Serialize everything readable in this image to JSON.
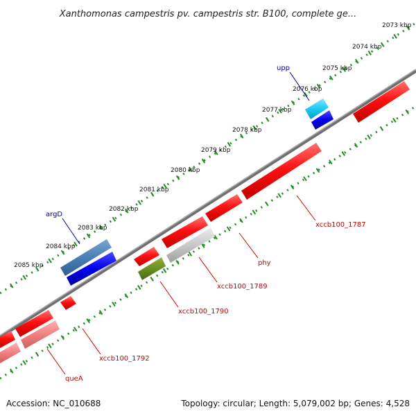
{
  "title": "Xanthomonas campestris pv. campestris str. B100, complete ge...",
  "footer": {
    "accession": "Accession: NC_010688",
    "summary": "Topology: circular; Length: 5,079,002 bp; Genes: 4,528"
  },
  "ticks": [
    "2073 kbp",
    "2074 kbp",
    "2075 kbp",
    "2076 kbp",
    "2077 kbp",
    "2078 kbp",
    "2079 kbp",
    "2080 kbp",
    "2081 kbp",
    "2082 kbp",
    "2083 kbp",
    "2084 kbp",
    "2085 kbp"
  ],
  "genes": [
    {
      "label": "upp",
      "color": "#00008b"
    },
    {
      "label": "argD",
      "color": "#00008b"
    },
    {
      "label": "xccb100_1787",
      "color": "#cc0000"
    },
    {
      "label": "phy",
      "color": "#cc0000"
    },
    {
      "label": "xccb100_1789",
      "color": "#cc0000"
    },
    {
      "label": "xccb100_1790",
      "color": "#cc0000"
    },
    {
      "label": "xccb100_1792",
      "color": "#cc0000"
    },
    {
      "label": "queA",
      "color": "#cc0000"
    }
  ],
  "colors": {
    "backbone": "#808080",
    "tick_ring": "#228b22",
    "forward_gene": "#ff0000",
    "reverse_gene": "#ff0000",
    "rna_gene": "#0000ff",
    "light_blue": "#1ec8f0",
    "steel_blue": "#4a7fb5",
    "olive": "#6b8e23",
    "gray": "#c8c8c8",
    "pink": "#f08080"
  }
}
